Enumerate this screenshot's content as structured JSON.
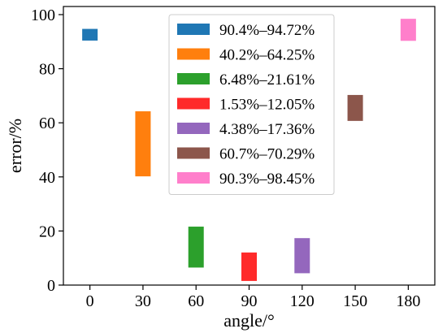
{
  "chart_data": {
    "type": "bar",
    "bar_style": "floating-range",
    "xlabel": "angle/°",
    "ylabel": "error/%",
    "xlim": [
      -15,
      195
    ],
    "ylim": [
      0,
      103
    ],
    "xticks": [
      0,
      30,
      60,
      90,
      120,
      150,
      180
    ],
    "yticks": [
      0,
      20,
      40,
      60,
      80,
      100
    ],
    "grid": false,
    "legend_position": "top-center",
    "series": [
      {
        "name": "90.4%–94.72%",
        "x": 0,
        "low": 90.4,
        "high": 94.72,
        "color": "#1f77b4"
      },
      {
        "name": "40.2%–64.25%",
        "x": 30,
        "low": 40.2,
        "high": 64.25,
        "color": "#ff7f0e"
      },
      {
        "name": "6.48%–21.61%",
        "x": 60,
        "low": 6.48,
        "high": 21.61,
        "color": "#2ca02c"
      },
      {
        "name": "1.53%–12.05%",
        "x": 90,
        "low": 1.53,
        "high": 12.05,
        "color": "#ff2a2a"
      },
      {
        "name": "4.38%–17.36%",
        "x": 120,
        "low": 4.38,
        "high": 17.36,
        "color": "#9467bd"
      },
      {
        "name": "60.7%–70.29%",
        "x": 150,
        "low": 60.7,
        "high": 70.29,
        "color": "#8c564b"
      },
      {
        "name": "90.3%–98.45%",
        "x": 180,
        "low": 90.3,
        "high": 98.45,
        "color": "#ff7fcb"
      }
    ]
  }
}
